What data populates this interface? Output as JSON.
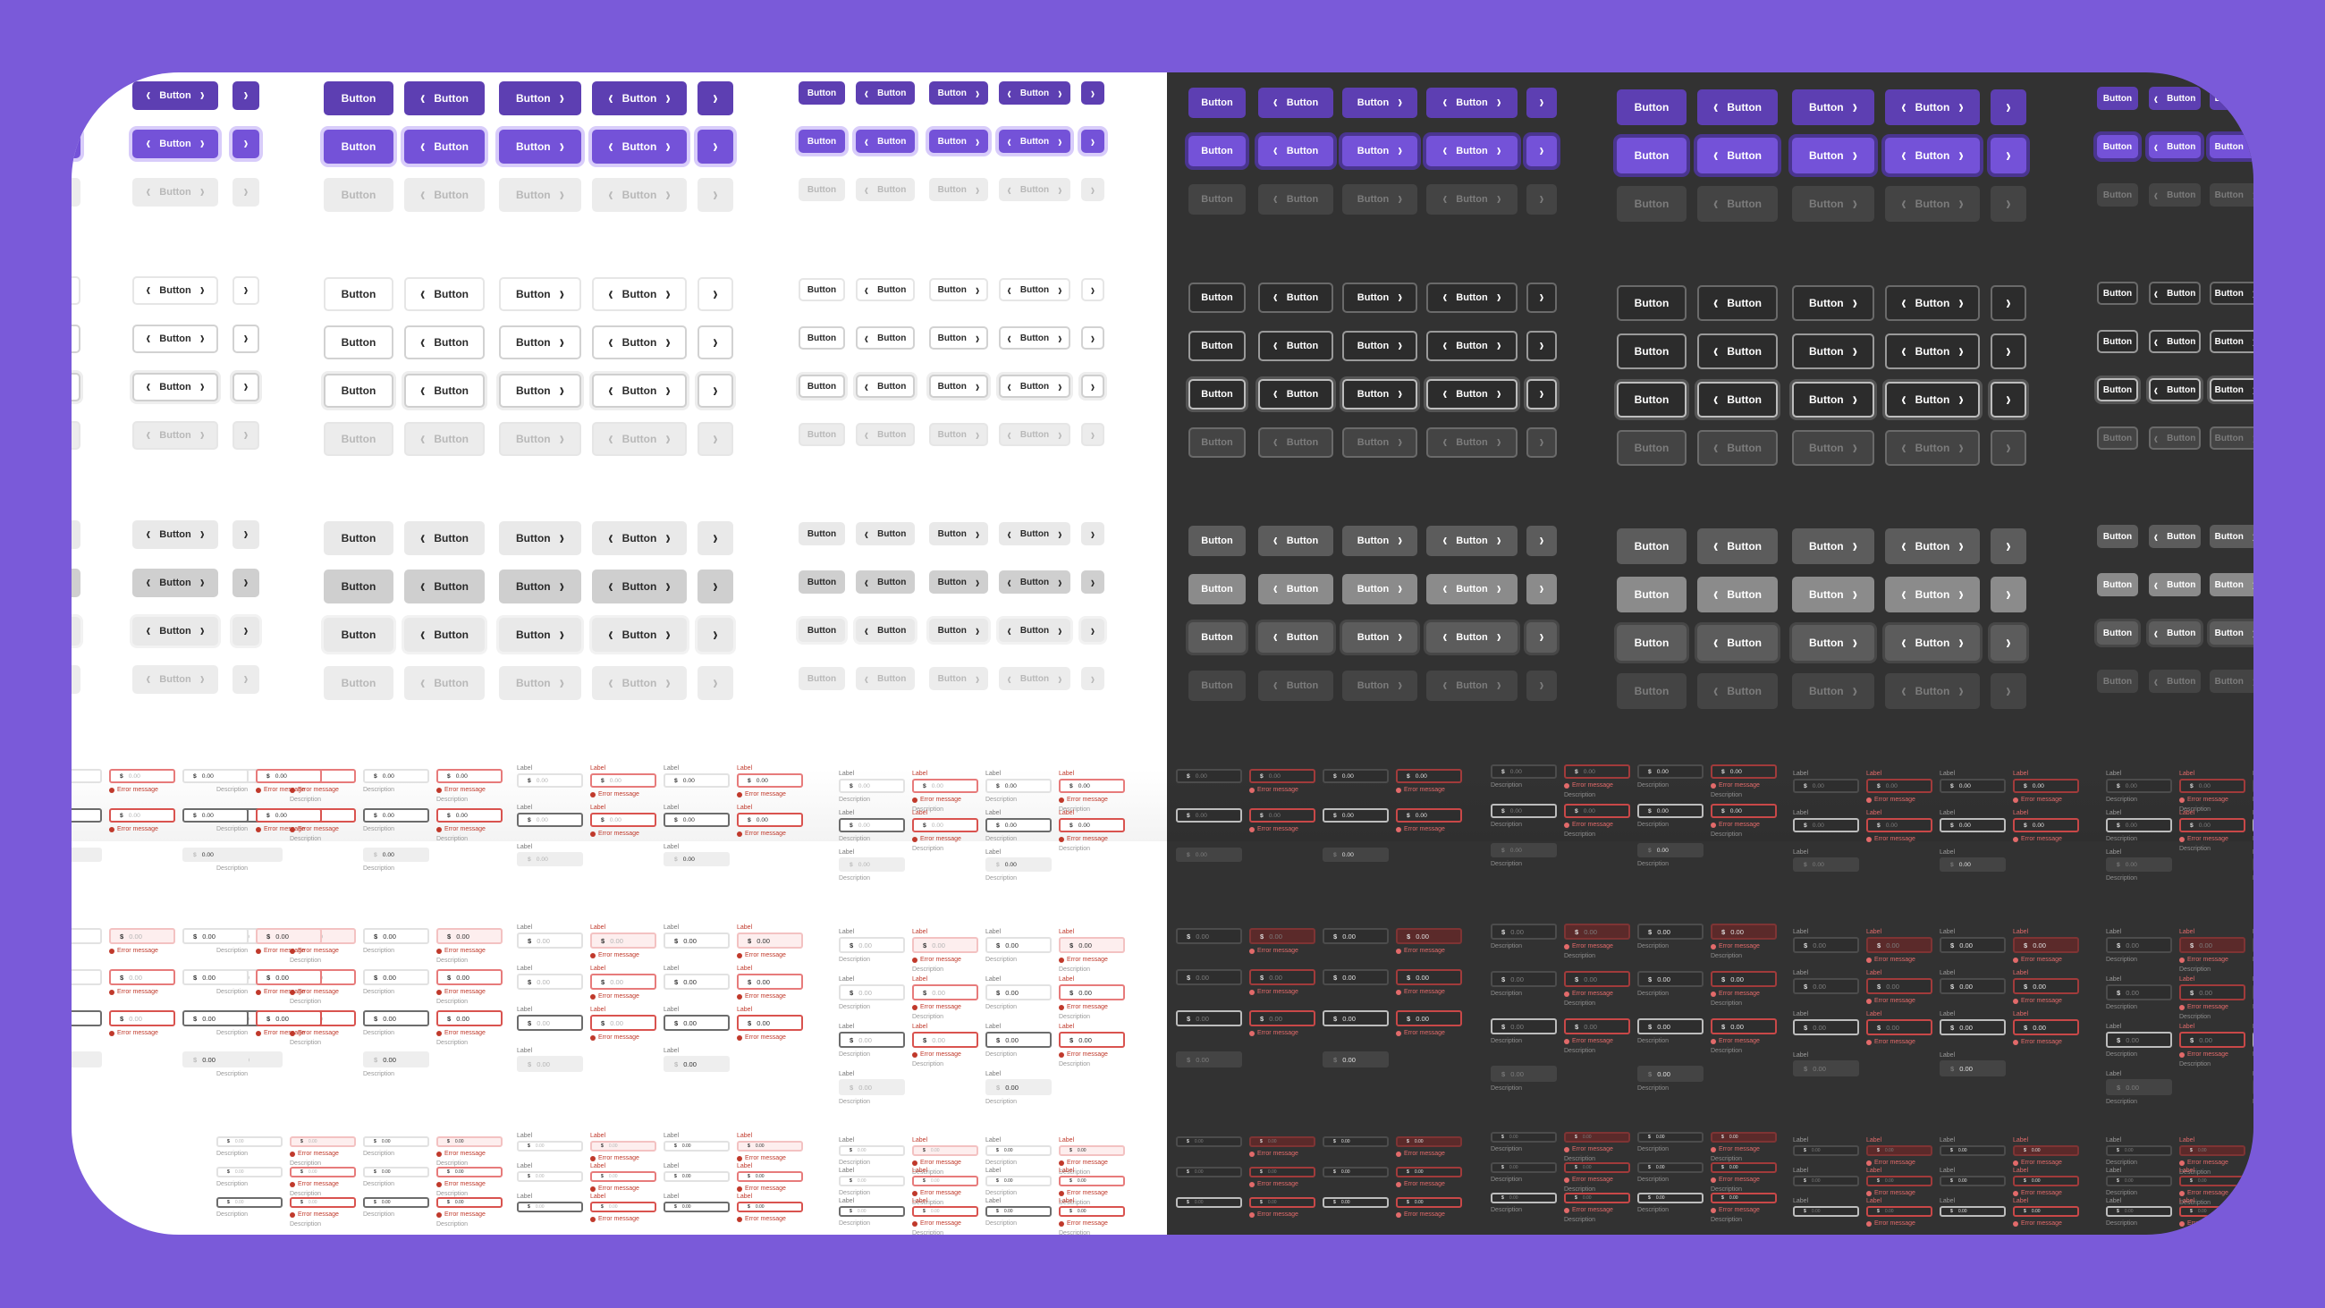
{
  "colors": {
    "background": "#7a5ad9",
    "primary": "#5d3fb2",
    "primary_focus": "#7452d8",
    "error": "#c0392b",
    "light_panel": "#ffffff",
    "dark_panel": "#323232"
  },
  "button": {
    "label": "Button",
    "icon_left": "chevron-left-icon",
    "icon_right": "chevron-right-icon",
    "layouts": [
      "text",
      "icon-left",
      "icon-right",
      "icon-both",
      "icon-only"
    ],
    "variants": {
      "primary": [
        "default",
        "focus",
        "disabled"
      ],
      "outline": [
        "default",
        "hover",
        "focus",
        "disabled"
      ],
      "secondary": [
        "default",
        "hover",
        "focus",
        "disabled"
      ]
    }
  },
  "field": {
    "label": "Label",
    "currency": "$",
    "value": "0.00",
    "error_message": "Error message",
    "description": "Description"
  },
  "glyphs": {
    "chevron_left": "‹",
    "chevron_right": "›"
  }
}
